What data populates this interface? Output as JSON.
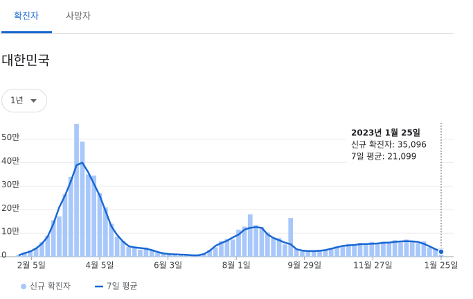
{
  "tabs": [
    {
      "label": "확진자",
      "active": true
    },
    {
      "label": "사망자",
      "active": false
    }
  ],
  "region": "대한민국",
  "range_selector": "1년",
  "chart_data": {
    "type": "combo",
    "x": [
      0,
      5,
      10,
      15,
      20,
      25,
      30,
      35,
      40,
      45,
      50,
      55,
      60,
      65,
      70,
      75,
      80,
      85,
      90,
      95,
      100,
      105,
      110,
      115,
      120,
      125,
      130,
      135,
      140,
      145,
      150,
      155,
      160,
      165,
      170,
      175,
      180,
      185,
      190,
      195,
      200,
      205,
      210,
      215,
      220,
      225,
      230,
      235,
      240,
      245,
      250,
      255,
      260,
      265,
      270,
      275,
      280,
      285,
      290,
      295,
      300,
      305,
      310,
      315,
      320,
      325,
      330,
      335,
      340,
      345,
      350,
      355,
      360,
      365
    ],
    "xlim": [
      0,
      365
    ],
    "xticks": [
      {
        "value": 11,
        "label": "2월 5일"
      },
      {
        "value": 70,
        "label": "4월 5일"
      },
      {
        "value": 129,
        "label": "6월 3일"
      },
      {
        "value": 188,
        "label": "8월 1일"
      },
      {
        "value": 247,
        "label": "9월 29일"
      },
      {
        "value": 306,
        "label": "11월 27일"
      },
      {
        "value": 365,
        "label": "1월 25일"
      }
    ],
    "ylim": [
      0,
      570000
    ],
    "yticks": [
      0,
      {
        "value": 100000,
        "label": "10만"
      },
      {
        "value": 200000,
        "label": "20만"
      },
      {
        "value": 300000,
        "label": "30만"
      },
      {
        "value": 400000,
        "label": "40만"
      },
      {
        "value": 500000,
        "label": "50만"
      }
    ],
    "grid": true,
    "series": [
      {
        "name": "신규 확진자",
        "type": "bar",
        "color": "#a8c7fa",
        "values": [
          8000,
          17000,
          27000,
          38000,
          62000,
          90000,
          155000,
          171000,
          265000,
          340000,
          565000,
          490000,
          350000,
          345000,
          270000,
          210000,
          140000,
          85000,
          68000,
          41000,
          45000,
          30000,
          39000,
          31000,
          16000,
          15000,
          12000,
          9000,
          10000,
          6000,
          7000,
          7000,
          13000,
          29000,
          40000,
          66000,
          75000,
          73000,
          115000,
          128000,
          180000,
          135000,
          126000,
          103000,
          80000,
          79000,
          52000,
          165000,
          33000,
          23000,
          28000,
          22000,
          29000,
          30000,
          36000,
          45000,
          43000,
          55000,
          47000,
          59000,
          51000,
          62000,
          53000,
          64000,
          60000,
          70000,
          61000,
          73000,
          69000,
          58000,
          65000,
          40000,
          34000,
          35096
        ]
      },
      {
        "name": "7일 평균",
        "type": "line",
        "color": "#1967d2",
        "values": [
          6000,
          15000,
          22000,
          35000,
          55000,
          85000,
          140000,
          210000,
          260000,
          320000,
          390000,
          400000,
          360000,
          310000,
          260000,
          195000,
          130000,
          93000,
          65000,
          45000,
          39000,
          37000,
          34000,
          28000,
          20000,
          14000,
          11000,
          10000,
          9000,
          8000,
          6000,
          6000,
          11000,
          25000,
          46000,
          58000,
          68000,
          82000,
          94000,
          115000,
          123000,
          126000,
          123000,
          95000,
          80000,
          70000,
          60000,
          53000,
          32000,
          26000,
          24000,
          24000,
          25000,
          28000,
          34000,
          40000,
          46000,
          48000,
          50000,
          53000,
          54000,
          55000,
          56000,
          59000,
          60000,
          63000,
          65000,
          66000,
          65000,
          63000,
          55000,
          44000,
          32000,
          21099
        ]
      }
    ],
    "tooltip": {
      "title": "2023년 1월 25일",
      "lines": [
        "신규 확진자: 35,096",
        "7일 평균: 21,099"
      ]
    }
  }
}
